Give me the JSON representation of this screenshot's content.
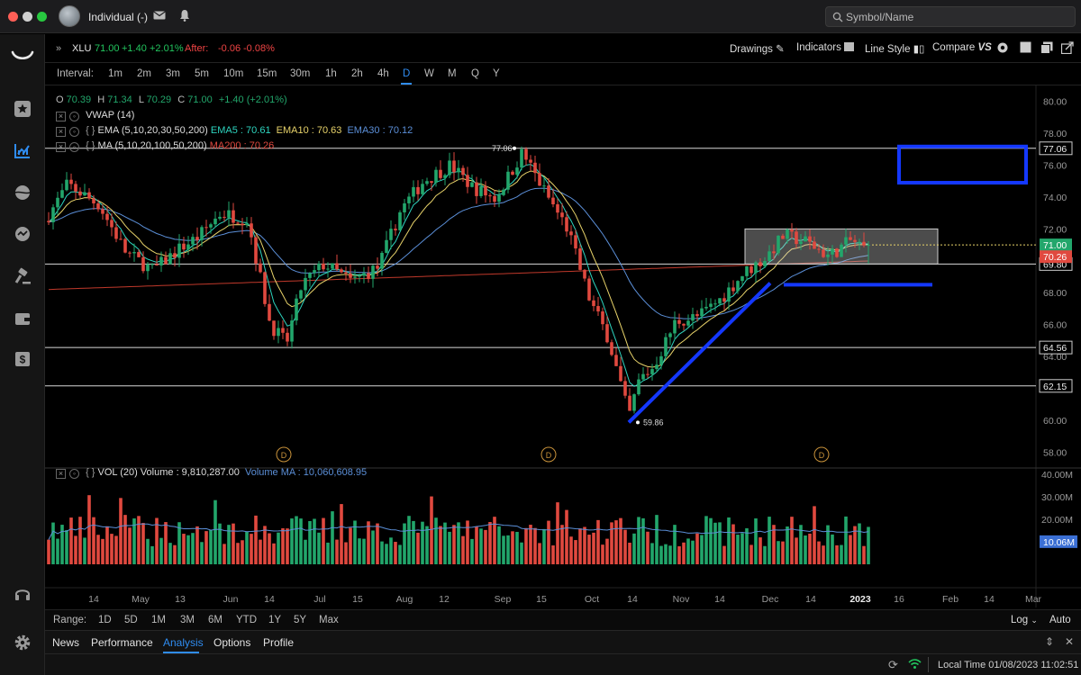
{
  "titlebar": {
    "account": "Individual (-)",
    "search_placeholder": "Symbol/Name"
  },
  "quote": {
    "symbol": "XLU",
    "price": "71.00",
    "change": "+1.40",
    "pct": "+2.01%",
    "after_label": "After:",
    "after_change": "-0.06",
    "after_pct": "-0.08%"
  },
  "toolbar": {
    "drawings": "Drawings",
    "indicators": "Indicators",
    "line_style": "Line Style",
    "compare": "Compare"
  },
  "intervals": {
    "label": "Interval:",
    "items": [
      "1m",
      "2m",
      "3m",
      "5m",
      "10m",
      "15m",
      "30m",
      "1h",
      "2h",
      "4h",
      "D",
      "W",
      "M",
      "Q",
      "Y"
    ],
    "active": "D"
  },
  "legend": {
    "ohlc": {
      "o_label": "O",
      "o": "70.39",
      "h_label": "H",
      "h": "71.34",
      "l_label": "L",
      "l": "70.29",
      "c_label": "C",
      "c": "71.00",
      "chg": "+1.40 (+2.01%)"
    },
    "vwap": "VWAP (14)",
    "ema": {
      "label": "EMA (5,10,20,30,50,200)",
      "ema5": "EMA5 : 70.61",
      "ema10": "EMA10 : 70.63",
      "ema30": "EMA30 : 70.12"
    },
    "ma": {
      "label": "MA (5,10,20,100,50,200)",
      "ma200": "MA200 : 70.26"
    },
    "vol": {
      "label": "VOL (20)",
      "volume": "Volume : 9,810,287.00",
      "volume_ma": "Volume MA : 10,060,608.95"
    }
  },
  "colors": {
    "up": "#22a66b",
    "down": "#e0493f",
    "ema5": "#2dd4bf",
    "ema10": "#e8d36a",
    "ema30": "#5b8fd8",
    "ma200": "#c0392b",
    "drawing": "#1438ff",
    "accent": "#2f8cf0"
  },
  "chart_data": {
    "type": "candlestick",
    "symbol": "XLU",
    "interval": "D",
    "price_axis_ticks": [
      "80.00",
      "78.00",
      "76.00",
      "74.00",
      "72.00",
      "70.00",
      "68.00",
      "66.00",
      "64.00",
      "62.00",
      "60.00",
      "58.00"
    ],
    "volume_axis_ticks": [
      "40.00M",
      "30.00M",
      "20.00M"
    ],
    "x_axis_labels": [
      "14",
      "May",
      "13",
      "Jun",
      "14",
      "Jul",
      "15",
      "Aug",
      "12",
      "Sep",
      "15",
      "Oct",
      "14",
      "Nov",
      "14",
      "Dec",
      "14",
      "2023",
      "16",
      "Feb",
      "14",
      "Mar"
    ],
    "horizontal_levels": [
      {
        "value": 77.06,
        "label": "77.06"
      },
      {
        "value": 69.8,
        "label": "69.80"
      },
      {
        "value": 64.56,
        "label": "64.56"
      },
      {
        "value": 62.15,
        "label": "62.15"
      }
    ],
    "price_tags": [
      {
        "value": 71.0,
        "label": "71.00",
        "color": "#22a66b"
      },
      {
        "value": 70.26,
        "label": "70.26",
        "color": "#e0493f"
      }
    ],
    "volume_ma_tag": "10.06M",
    "annotations": [
      {
        "type": "high_marker",
        "value": 77.06,
        "label": "77.06"
      },
      {
        "type": "low_marker",
        "value": 59.86,
        "label": "59.86"
      },
      {
        "type": "dividend",
        "label": "D"
      }
    ],
    "y_range": [
      57,
      81
    ],
    "last_close": 71.0
  },
  "range": {
    "label": "Range:",
    "items": [
      "1D",
      "5D",
      "1M",
      "3M",
      "6M",
      "YTD",
      "1Y",
      "5Y",
      "Max"
    ],
    "log": "Log",
    "auto": "Auto"
  },
  "tabs": [
    "News",
    "Performance",
    "Analysis",
    "Options",
    "Profile"
  ],
  "status": {
    "local_time": "Local Time 01/08/2023 11:02:51"
  }
}
